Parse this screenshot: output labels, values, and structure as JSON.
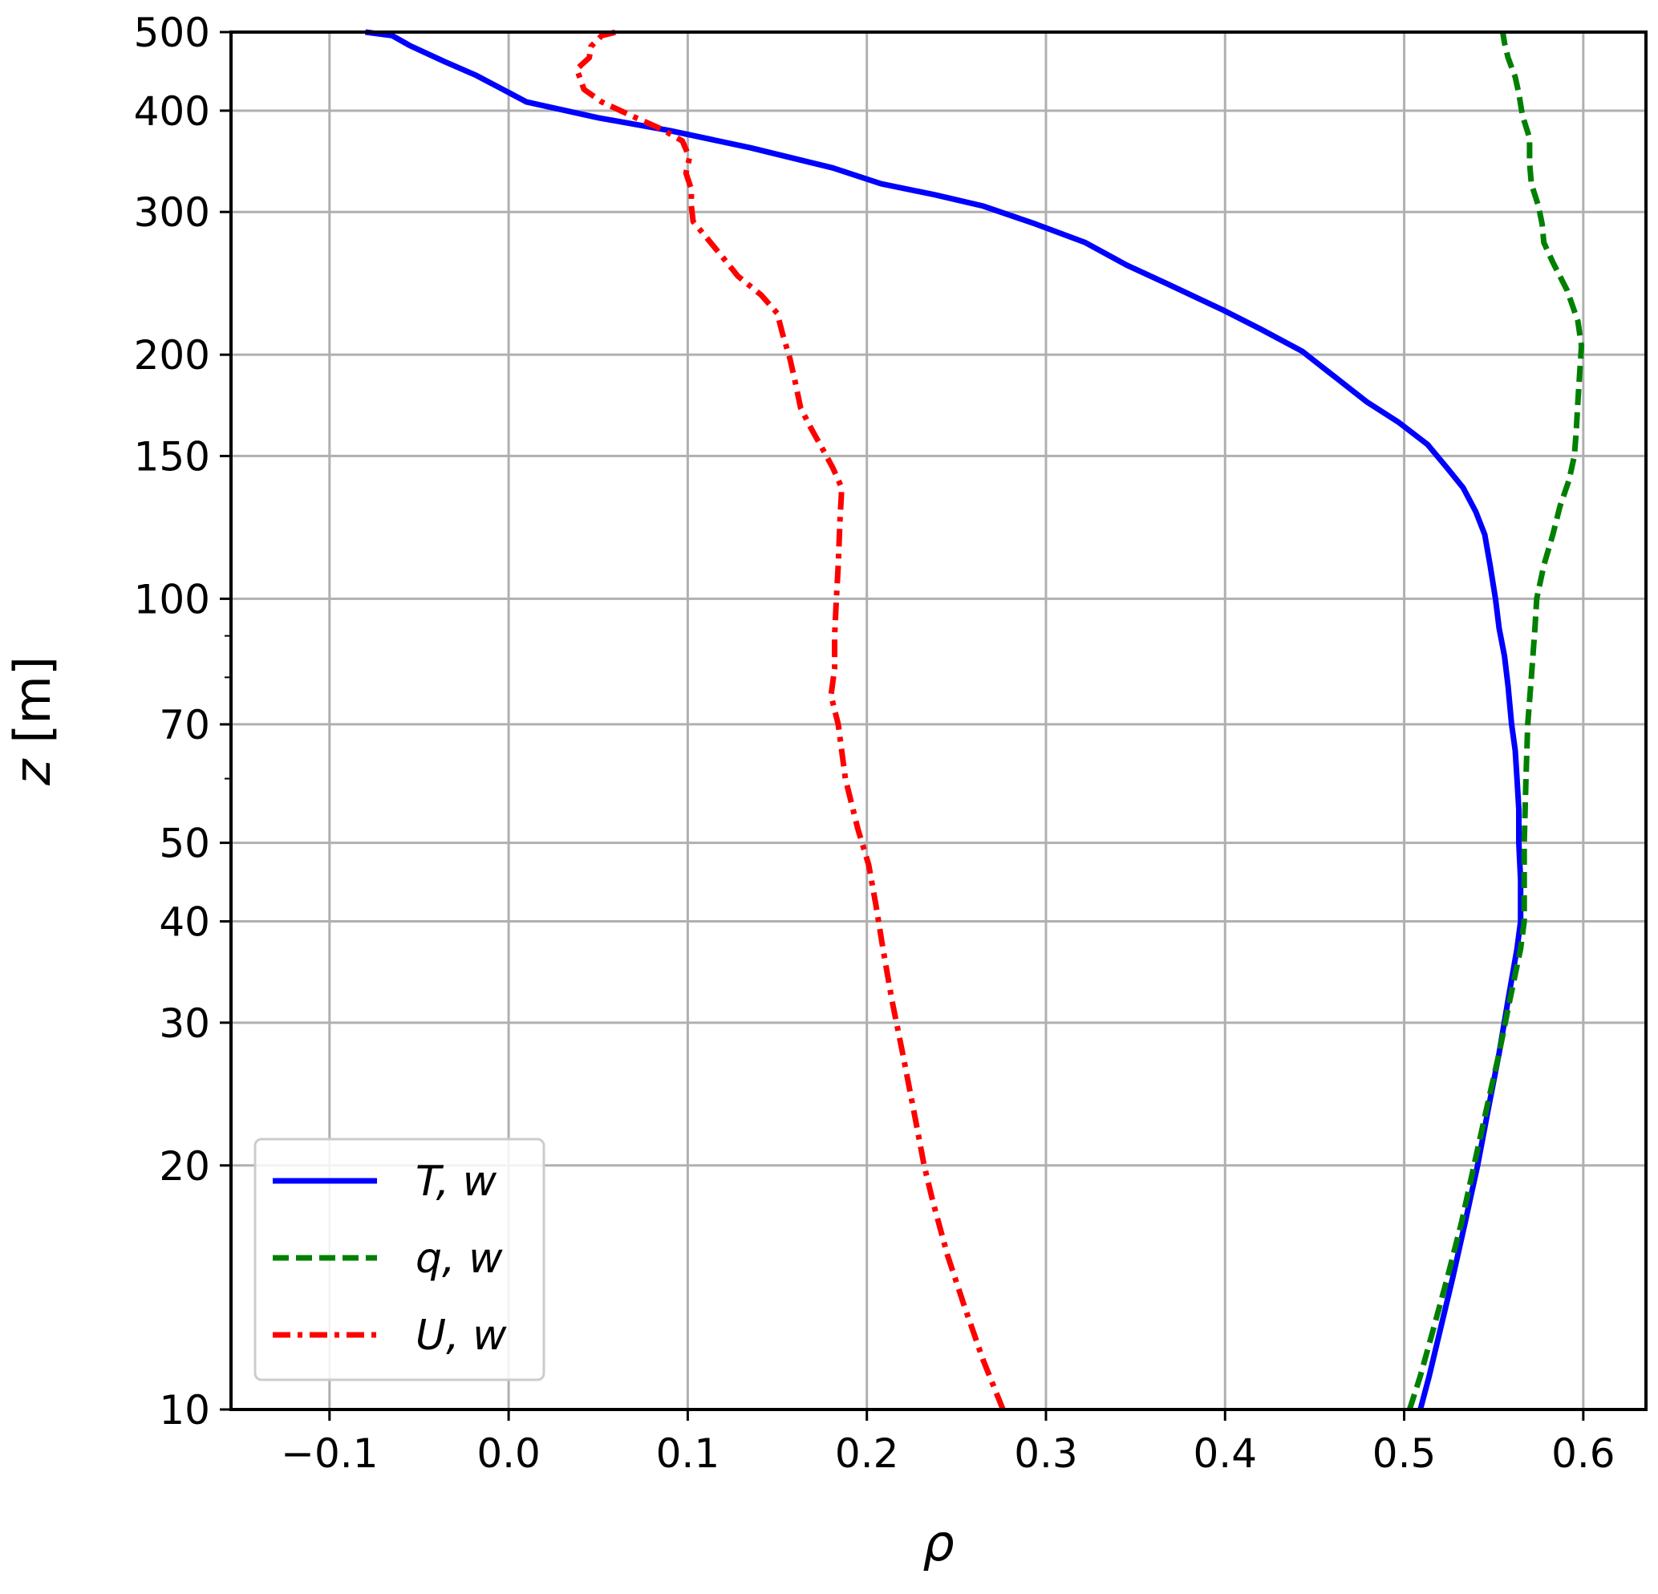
{
  "chart_data": {
    "type": "line",
    "xlabel": "ρ",
    "ylabel_var": "z",
    "ylabel_unit": " [m]",
    "xlim": [
      -0.155,
      0.635
    ],
    "ylim": [
      10,
      500
    ],
    "yscale": "log",
    "grid": true,
    "legend_position": "lower-left",
    "x_ticks": [
      -0.1,
      0.0,
      0.1,
      0.2,
      0.3,
      0.4,
      0.5,
      0.6
    ],
    "x_tick_labels": [
      "−0.1",
      "0.0",
      "0.1",
      "0.2",
      "0.3",
      "0.4",
      "0.5",
      "0.6"
    ],
    "y_ticks": [
      10,
      20,
      30,
      40,
      50,
      70,
      100,
      150,
      200,
      300,
      400,
      500
    ],
    "y_tick_labels": [
      "10",
      "20",
      "30",
      "40",
      "50",
      "70",
      "100",
      "150",
      "200",
      "300",
      "400",
      "500"
    ],
    "y_minor_ticks": [
      60,
      80,
      90
    ],
    "series": [
      {
        "name": "T, w",
        "color": "#0000ff",
        "dash": "solid",
        "points": [
          [
            0.509,
            10
          ],
          [
            0.514,
            11
          ],
          [
            0.52,
            12.5
          ],
          [
            0.527,
            14.5
          ],
          [
            0.534,
            17
          ],
          [
            0.541,
            20
          ],
          [
            0.547,
            23.5
          ],
          [
            0.553,
            27.5
          ],
          [
            0.558,
            32
          ],
          [
            0.563,
            37
          ],
          [
            0.565,
            40
          ],
          [
            0.565,
            45
          ],
          [
            0.564,
            50
          ],
          [
            0.564,
            55
          ],
          [
            0.563,
            60
          ],
          [
            0.562,
            65
          ],
          [
            0.56,
            70
          ],
          [
            0.558,
            78
          ],
          [
            0.556,
            85
          ],
          [
            0.553,
            92
          ],
          [
            0.551,
            100
          ],
          [
            0.548,
            110
          ],
          [
            0.545,
            120
          ],
          [
            0.54,
            128
          ],
          [
            0.533,
            137
          ],
          [
            0.524,
            145
          ],
          [
            0.513,
            155
          ],
          [
            0.497,
            165
          ],
          [
            0.479,
            175
          ],
          [
            0.461,
            188
          ],
          [
            0.443,
            202
          ],
          [
            0.42,
            215
          ],
          [
            0.399,
            227
          ],
          [
            0.367,
            245
          ],
          [
            0.345,
            258
          ],
          [
            0.322,
            275
          ],
          [
            0.294,
            290
          ],
          [
            0.265,
            305
          ],
          [
            0.238,
            315
          ],
          [
            0.208,
            325
          ],
          [
            0.181,
            340
          ],
          [
            0.135,
            360
          ],
          [
            0.09,
            378
          ],
          [
            0.05,
            392
          ],
          [
            0.01,
            410
          ],
          [
            -0.006,
            428
          ],
          [
            -0.018,
            442
          ],
          [
            -0.036,
            460
          ],
          [
            -0.055,
            481
          ],
          [
            -0.065,
            495
          ],
          [
            -0.08,
            500
          ]
        ]
      },
      {
        "name": "q, w",
        "color": "#008000",
        "dash": "dashed",
        "points": [
          [
            0.503,
            10
          ],
          [
            0.509,
            11
          ],
          [
            0.516,
            12.5
          ],
          [
            0.524,
            14.5
          ],
          [
            0.532,
            17
          ],
          [
            0.539,
            20
          ],
          [
            0.546,
            23.5
          ],
          [
            0.553,
            27.5
          ],
          [
            0.559,
            32
          ],
          [
            0.565,
            37
          ],
          [
            0.567,
            40
          ],
          [
            0.567,
            45
          ],
          [
            0.567,
            50
          ],
          [
            0.568,
            60
          ],
          [
            0.569,
            70
          ],
          [
            0.571,
            80
          ],
          [
            0.573,
            92
          ],
          [
            0.574,
            100
          ],
          [
            0.578,
            110
          ],
          [
            0.583,
            120
          ],
          [
            0.587,
            130
          ],
          [
            0.592,
            140
          ],
          [
            0.595,
            150
          ],
          [
            0.596,
            160
          ],
          [
            0.597,
            175
          ],
          [
            0.598,
            190
          ],
          [
            0.599,
            205
          ],
          [
            0.597,
            220
          ],
          [
            0.591,
            240
          ],
          [
            0.583,
            260
          ],
          [
            0.578,
            275
          ],
          [
            0.577,
            290
          ],
          [
            0.575,
            305
          ],
          [
            0.571,
            325
          ],
          [
            0.57,
            345
          ],
          [
            0.57,
            370
          ],
          [
            0.566,
            395
          ],
          [
            0.564,
            420
          ],
          [
            0.562,
            440
          ],
          [
            0.558,
            465
          ],
          [
            0.556,
            485
          ],
          [
            0.555,
            500
          ]
        ]
      },
      {
        "name": "U, w",
        "color": "#ff0000",
        "dash": "dashdot",
        "points": [
          [
            0.276,
            10
          ],
          [
            0.265,
            11.5
          ],
          [
            0.254,
            13.5
          ],
          [
            0.245,
            15.5
          ],
          [
            0.237,
            18
          ],
          [
            0.232,
            20
          ],
          [
            0.226,
            23.5
          ],
          [
            0.22,
            27.5
          ],
          [
            0.214,
            32
          ],
          [
            0.209,
            37
          ],
          [
            0.205,
            42
          ],
          [
            0.201,
            47
          ],
          [
            0.195,
            52
          ],
          [
            0.188,
            60
          ],
          [
            0.184,
            70
          ],
          [
            0.18,
            76
          ],
          [
            0.182,
            82
          ],
          [
            0.182,
            90
          ],
          [
            0.183,
            100
          ],
          [
            0.184,
            110
          ],
          [
            0.185,
            125
          ],
          [
            0.186,
            137
          ],
          [
            0.181,
            145
          ],
          [
            0.176,
            152
          ],
          [
            0.169,
            162
          ],
          [
            0.163,
            172
          ],
          [
            0.16,
            185
          ],
          [
            0.157,
            198
          ],
          [
            0.153,
            212
          ],
          [
            0.15,
            225
          ],
          [
            0.141,
            237
          ],
          [
            0.128,
            250
          ],
          [
            0.12,
            263
          ],
          [
            0.111,
            278
          ],
          [
            0.103,
            292
          ],
          [
            0.102,
            305
          ],
          [
            0.102,
            320
          ],
          [
            0.099,
            335
          ],
          [
            0.101,
            350
          ],
          [
            0.097,
            367
          ],
          [
            0.085,
            380
          ],
          [
            0.07,
            393
          ],
          [
            0.052,
            410
          ],
          [
            0.042,
            425
          ],
          [
            0.04,
            438
          ],
          [
            0.038,
            450
          ],
          [
            0.045,
            465
          ],
          [
            0.046,
            480
          ],
          [
            0.052,
            495
          ],
          [
            0.06,
            500
          ]
        ]
      }
    ]
  },
  "legend": {
    "entries": [
      {
        "main": "T",
        "rest": ", w"
      },
      {
        "main": "q",
        "rest": ", w"
      },
      {
        "main": "U",
        "rest": ", w"
      }
    ]
  }
}
